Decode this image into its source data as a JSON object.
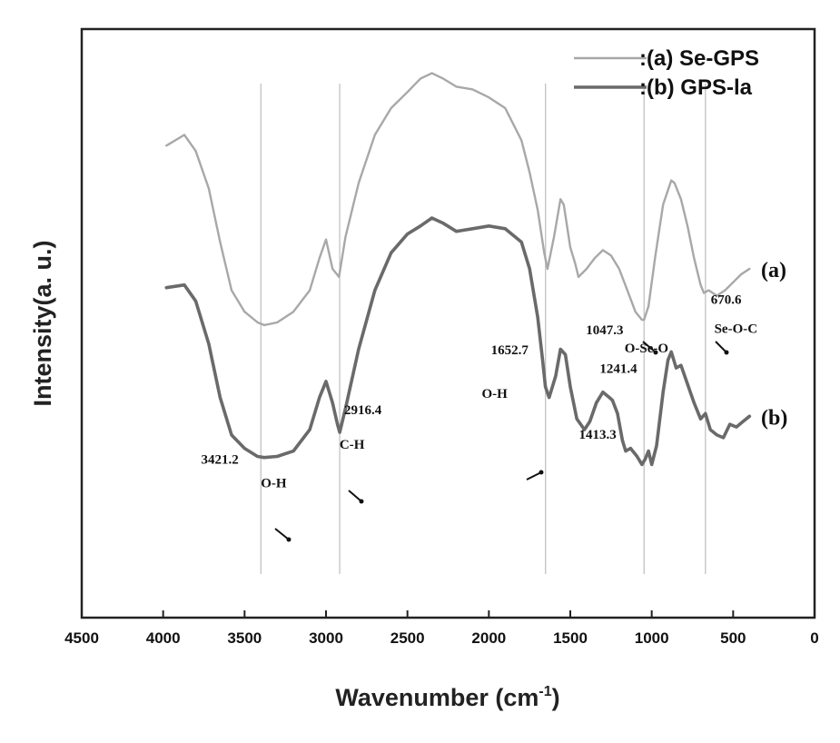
{
  "chart_data": {
    "type": "line",
    "title": "",
    "xlabel": "Wavenumber (cm",
    "xlabel_sup": "-1",
    "xlabel_tail": ")",
    "ylabel": "Intensity(a. u.)",
    "x_reversed": true,
    "xlim": [
      4500,
      0
    ],
    "ylim": [
      0,
      100
    ],
    "y_ticks_shown": false,
    "x_ticks": [
      4500,
      4000,
      3500,
      3000,
      2500,
      2000,
      1500,
      1000,
      500,
      0
    ],
    "x_tick_labels": [
      "4500",
      "4000",
      "3500",
      "3000",
      "2500",
      "2000",
      "1500",
      "1000",
      "500",
      "0"
    ],
    "grid": false,
    "legend_position": "top-right",
    "series": [
      {
        "name": ":(a) Se-GPS",
        "tag": "(a)",
        "color": "#a8a8a8",
        "x": [
          3980,
          3870,
          3800,
          3720,
          3650,
          3580,
          3500,
          3420,
          3380,
          3300,
          3200,
          3100,
          3040,
          3000,
          2960,
          2920,
          2880,
          2800,
          2700,
          2600,
          2500,
          2420,
          2350,
          2280,
          2200,
          2100,
          2000,
          1900,
          1800,
          1750,
          1700,
          1660,
          1640,
          1600,
          1560,
          1540,
          1500,
          1470,
          1450,
          1400,
          1350,
          1300,
          1250,
          1200,
          1150,
          1100,
          1060,
          1047,
          1020,
          980,
          930,
          880,
          860,
          820,
          780,
          740,
          700,
          680,
          650,
          600,
          550,
          500,
          450,
          400
        ],
        "values": [
          83.0,
          85.0,
          82.0,
          75.0,
          65.0,
          56.0,
          52.0,
          50.0,
          49.5,
          50.0,
          52.0,
          56.0,
          62.0,
          65.5,
          60.0,
          58.5,
          66.0,
          76.0,
          85.0,
          90.0,
          93.0,
          95.5,
          96.5,
          95.5,
          94.0,
          93.5,
          92.0,
          90.0,
          84.0,
          78.0,
          71.0,
          63.0,
          60.0,
          66.0,
          73.0,
          72.0,
          64.0,
          61.0,
          58.5,
          60.0,
          62.0,
          63.5,
          62.5,
          60.0,
          56.0,
          52.0,
          50.5,
          50.5,
          53.0,
          62.0,
          72.0,
          76.5,
          76.0,
          73.0,
          68.0,
          62.0,
          57.0,
          55.5,
          56.0,
          55.0,
          56.0,
          57.5,
          59.0,
          60.0
        ]
      },
      {
        "name": ":(b) GPS-la",
        "tag": "(b)",
        "color": "#6a6a6a",
        "x": [
          3980,
          3870,
          3800,
          3720,
          3650,
          3580,
          3500,
          3421,
          3380,
          3300,
          3200,
          3100,
          3040,
          3000,
          2960,
          2930,
          2916,
          2880,
          2800,
          2700,
          2600,
          2500,
          2420,
          2350,
          2280,
          2200,
          2100,
          2000,
          1900,
          1800,
          1750,
          1700,
          1670,
          1653,
          1630,
          1590,
          1560,
          1530,
          1500,
          1460,
          1413,
          1380,
          1340,
          1300,
          1260,
          1241,
          1210,
          1180,
          1160,
          1130,
          1090,
          1060,
          1040,
          1020,
          1000,
          970,
          930,
          900,
          880,
          850,
          820,
          780,
          740,
          700,
          670,
          640,
          600,
          560,
          520,
          480,
          440,
          400
        ],
        "values": [
          56.5,
          57.0,
          54.0,
          46.0,
          36.0,
          29.0,
          26.5,
          25.0,
          24.8,
          25.0,
          26.0,
          30.0,
          36.0,
          39.0,
          35.0,
          31.0,
          29.5,
          34.0,
          45.0,
          56.0,
          63.0,
          66.5,
          68.0,
          69.5,
          68.5,
          67.0,
          67.5,
          68.0,
          67.5,
          65.0,
          60.0,
          51.0,
          43.0,
          38.0,
          36.0,
          40.0,
          45.0,
          44.0,
          38.0,
          32.0,
          30.0,
          31.5,
          35.0,
          37.0,
          36.0,
          35.5,
          33.0,
          28.0,
          26.0,
          26.5,
          25.0,
          23.5,
          24.5,
          26.0,
          23.5,
          27.0,
          37.0,
          43.0,
          44.5,
          41.5,
          42.0,
          38.5,
          35.0,
          32.0,
          33.0,
          30.0,
          29.0,
          28.5,
          31.0,
          30.5,
          31.5,
          32.5
        ]
      }
    ],
    "reference_lines": [
      3400,
      2916,
      1652,
      1047,
      670
    ],
    "annotations": [
      {
        "text": "3421.2",
        "x": 3421.2,
        "y": 25.0
      },
      {
        "text": "O-H",
        "x": 3300,
        "y": 25.0
      },
      {
        "text": "2916.4",
        "x": 2916.4,
        "y": 29.5
      },
      {
        "text": "C-H",
        "x": 2850,
        "y": 29.5
      },
      {
        "text": "1652.7",
        "x": 1652.7,
        "y": 38.0
      },
      {
        "text": "O-H",
        "x": 1720,
        "y": 38.0
      },
      {
        "text": "1413.3",
        "x": 1413.3,
        "y": 30.0
      },
      {
        "text": "1241.4",
        "x": 1241.4,
        "y": 35.5
      },
      {
        "text": "1047.3",
        "x": 1047.3,
        "y": 50.5
      },
      {
        "text": "O-Se-O",
        "x": 1000,
        "y": 50.5
      },
      {
        "text": "670.6",
        "x": 670.6,
        "y": 55.5
      },
      {
        "text": "Se-O-C",
        "x": 560,
        "y": 55.5
      }
    ]
  }
}
